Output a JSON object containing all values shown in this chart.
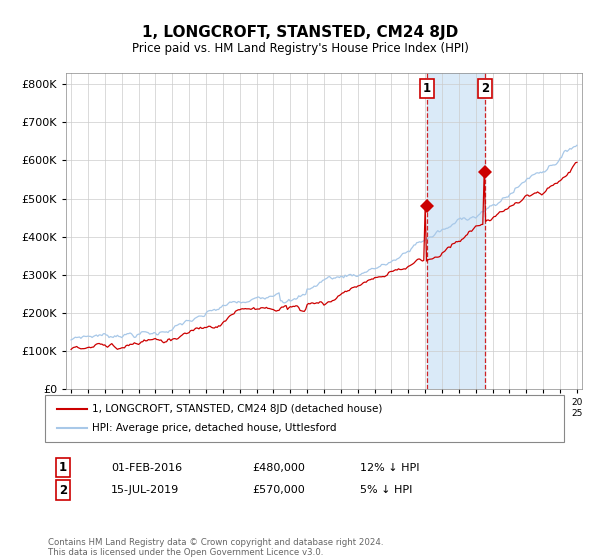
{
  "title": "1, LONGCROFT, STANSTED, CM24 8JD",
  "subtitle": "Price paid vs. HM Land Registry's House Price Index (HPI)",
  "legend_line1": "1, LONGCROFT, STANSTED, CM24 8JD (detached house)",
  "legend_line2": "HPI: Average price, detached house, Uttlesford",
  "annotation1": {
    "label": "1",
    "date_label": "01-FEB-2016",
    "price_label": "£480,000",
    "pct_label": "12% ↓ HPI",
    "year": 2016.08,
    "value": 480000
  },
  "annotation2": {
    "label": "2",
    "date_label": "15-JUL-2019",
    "price_label": "£570,000",
    "pct_label": "5% ↓ HPI",
    "year": 2019.54,
    "value": 570000
  },
  "footer": "Contains HM Land Registry data © Crown copyright and database right 2024.\nThis data is licensed under the Open Government Licence v3.0.",
  "red_color": "#cc0000",
  "blue_color": "#a8c8e8",
  "shade_color": "#daeaf8",
  "ylim": [
    0,
    830000
  ],
  "yticks": [
    0,
    100000,
    200000,
    300000,
    400000,
    500000,
    600000,
    700000,
    800000
  ],
  "ytick_labels": [
    "£0",
    "£100K",
    "£200K",
    "£300K",
    "£400K",
    "£500K",
    "£600K",
    "£700K",
    "£800K"
  ],
  "start_year": 1995,
  "end_year": 2025
}
